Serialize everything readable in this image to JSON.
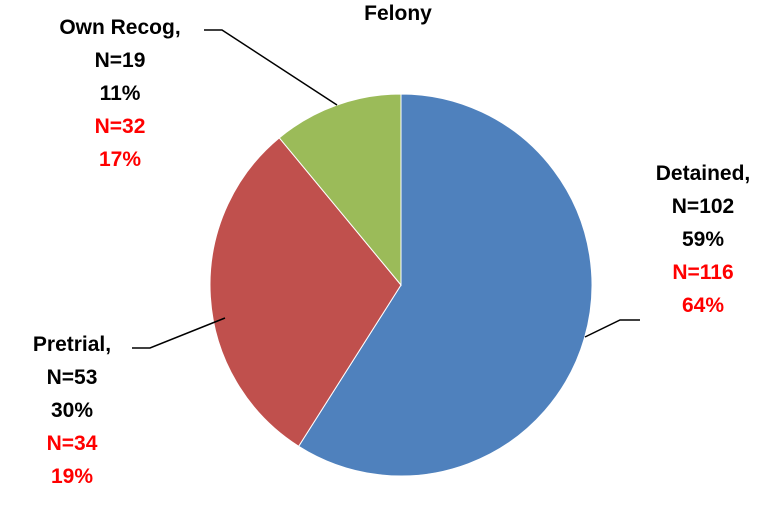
{
  "chart_data": {
    "type": "pie",
    "title": "Felony",
    "legend": "none",
    "colors": {
      "label_text": "#000000",
      "alt_text": "#ff0000",
      "leader_line": "#000000"
    },
    "slices": [
      {
        "category": "Detained",
        "value": 59,
        "color": "#4f81bd",
        "label_lines": [
          "Detained,",
          "N=102",
          "59%"
        ],
        "alt_lines": [
          "N=116",
          "64%"
        ]
      },
      {
        "category": "Pretrial",
        "value": 30,
        "color": "#c0504d",
        "label_lines": [
          "Pretrial,",
          "N=53",
          "30%"
        ],
        "alt_lines": [
          "N=34",
          "19%"
        ]
      },
      {
        "category": "Own Recog",
        "value": 11,
        "color": "#9bbb59",
        "label_lines": [
          "Own Recog,",
          "N=19",
          "11%"
        ],
        "alt_lines": [
          "N=32",
          "17%"
        ]
      }
    ]
  }
}
